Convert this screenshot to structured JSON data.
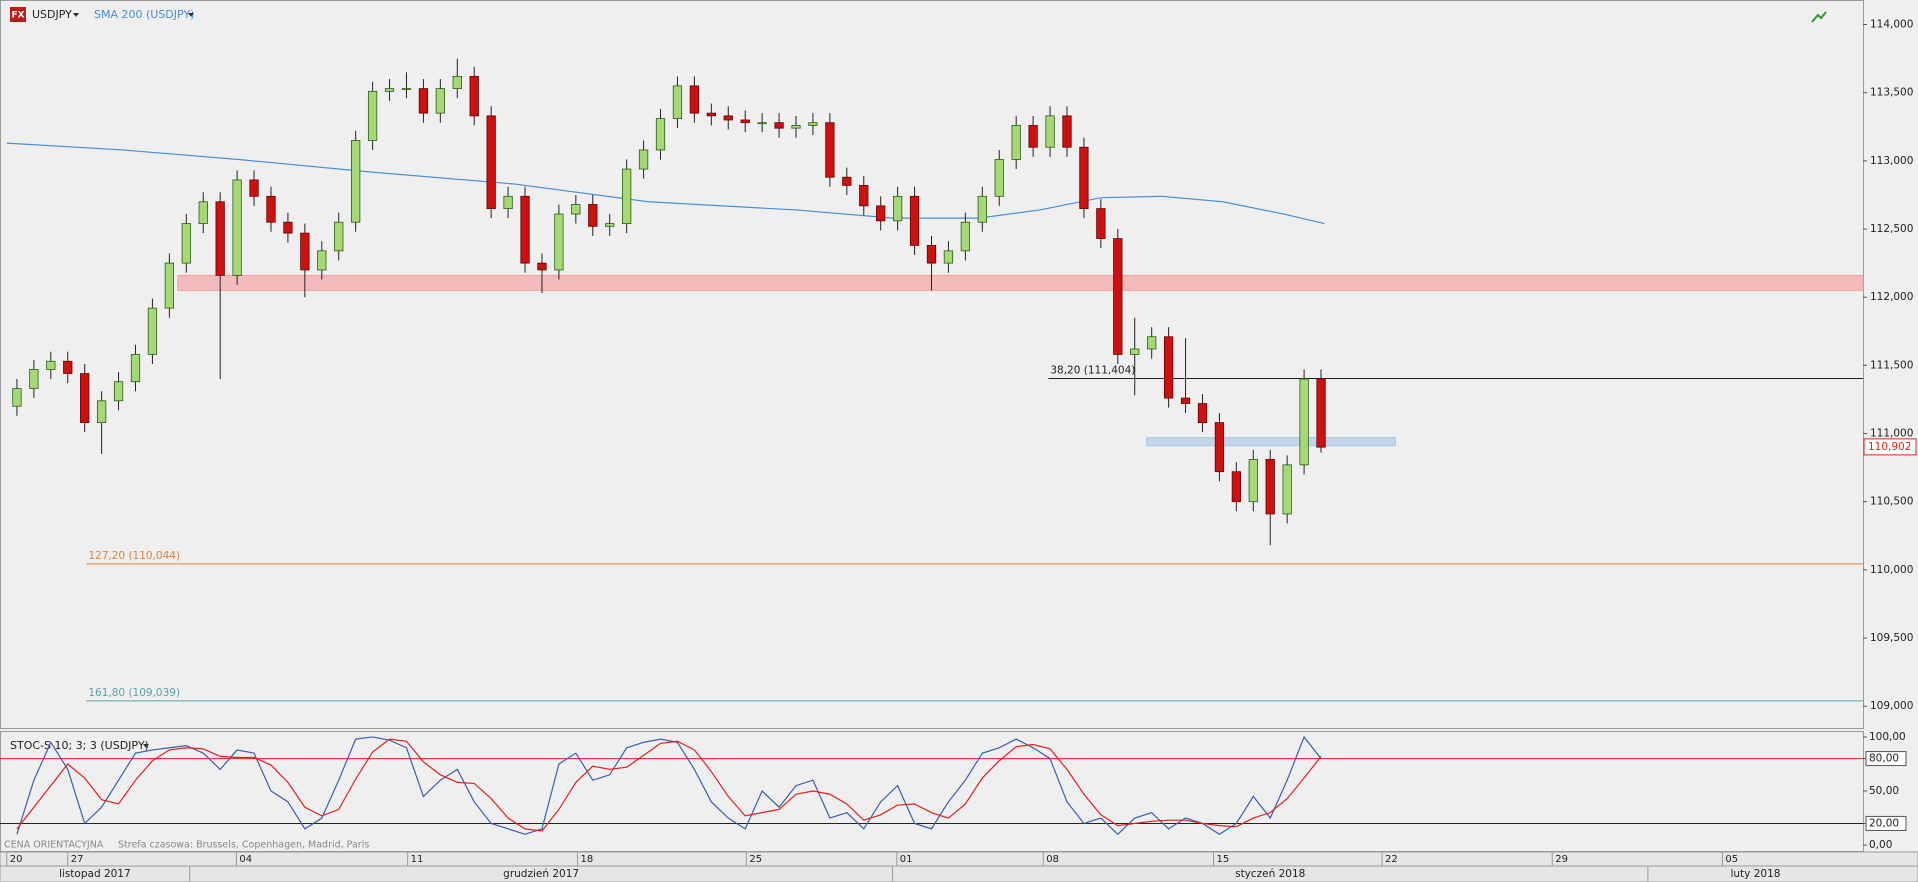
{
  "chart_data": [
    {
      "type": "candlestick",
      "title": "USDJPY",
      "logo": "FX",
      "xlim": [
        -4,
        106
      ],
      "ylim": [
        108.84,
        114.18
      ],
      "yticks": [
        {
          "value": 109,
          "label": "109,000"
        },
        {
          "value": 109.5,
          "label": "109,500"
        },
        {
          "value": 110,
          "label": "110,000"
        },
        {
          "value": 110.5,
          "label": "110,500"
        },
        {
          "value": 111,
          "label": "111,000"
        },
        {
          "value": 111.5,
          "label": "111,500"
        },
        {
          "value": 112,
          "label": "112,000"
        },
        {
          "value": 112.5,
          "label": "112,500"
        },
        {
          "value": 113,
          "label": "113,000"
        },
        {
          "value": 113.5,
          "label": "113,500"
        },
        {
          "value": 114,
          "label": "114,000"
        }
      ],
      "up_color": "#a6d878",
      "down_color": "#cc1111",
      "x": [
        -3,
        -2,
        -1,
        0,
        1,
        2,
        3,
        4,
        5,
        6,
        7,
        8,
        9,
        10,
        11,
        12,
        13,
        14,
        15,
        16,
        17,
        18,
        19,
        20,
        21,
        22,
        23,
        24,
        25,
        26,
        27,
        28,
        29,
        30,
        31,
        32,
        33,
        34,
        35,
        36,
        37,
        38,
        39,
        40,
        41,
        42,
        43,
        44,
        45,
        46,
        47,
        48,
        49,
        50,
        51,
        52,
        53,
        54,
        55,
        56,
        57,
        58,
        59,
        60,
        61,
        62,
        63,
        64,
        65,
        66,
        67,
        68,
        69,
        70,
        71,
        72,
        73,
        74
      ],
      "open": [
        111.2,
        111.33,
        111.47,
        111.53,
        111.44,
        111.08,
        111.24,
        111.38,
        111.58,
        111.92,
        112.25,
        112.54,
        112.7,
        112.16,
        112.86,
        112.74,
        112.55,
        112.47,
        112.2,
        112.34,
        112.55,
        113.15,
        113.51,
        113.53,
        113.53,
        113.35,
        113.53,
        113.62,
        113.33,
        112.65,
        112.74,
        112.25,
        112.2,
        112.61,
        112.68,
        112.52,
        112.54,
        112.94,
        113.08,
        113.31,
        113.55,
        113.35,
        113.33,
        113.3,
        113.28,
        113.28,
        113.24,
        113.26,
        113.28,
        112.88,
        112.82,
        112.67,
        112.56,
        112.74,
        112.38,
        112.25,
        112.34,
        112.55,
        112.74,
        113.01,
        113.26,
        113.1,
        113.33,
        113.1,
        112.65,
        112.43,
        111.58,
        111.62,
        111.71,
        111.26,
        111.22,
        111.08,
        110.72,
        110.5,
        110.81,
        110.41,
        110.77,
        111.4
      ],
      "high": [
        111.4,
        111.54,
        111.6,
        111.6,
        111.51,
        111.31,
        111.45,
        111.65,
        111.99,
        112.32,
        112.61,
        112.77,
        112.77,
        112.93,
        112.93,
        112.81,
        112.62,
        112.54,
        112.41,
        112.62,
        113.22,
        113.58,
        113.6,
        113.65,
        113.6,
        113.6,
        113.75,
        113.69,
        113.4,
        112.81,
        112.81,
        112.32,
        112.68,
        112.75,
        112.75,
        112.61,
        113.01,
        113.15,
        113.38,
        113.62,
        113.62,
        113.42,
        113.4,
        113.37,
        113.35,
        113.35,
        113.33,
        113.35,
        113.35,
        112.95,
        112.89,
        112.74,
        112.81,
        112.81,
        112.45,
        112.41,
        112.62,
        112.81,
        113.08,
        113.33,
        113.33,
        113.4,
        113.4,
        113.17,
        112.72,
        112.5,
        111.85,
        111.78,
        111.78,
        111.7,
        111.29,
        111.15,
        110.79,
        110.88,
        110.88,
        110.84,
        111.47,
        111.47
      ],
      "low": [
        111.13,
        111.26,
        111.4,
        111.37,
        111.01,
        110.85,
        111.17,
        111.31,
        111.51,
        111.85,
        112.18,
        112.47,
        111.4,
        112.09,
        112.67,
        112.48,
        112.4,
        112.0,
        112.13,
        112.27,
        112.48,
        113.08,
        113.44,
        113.46,
        113.28,
        113.28,
        113.46,
        113.26,
        112.58,
        112.58,
        112.18,
        112.03,
        112.13,
        112.54,
        112.45,
        112.45,
        112.47,
        112.87,
        113.01,
        113.24,
        113.28,
        113.26,
        113.23,
        113.21,
        113.21,
        113.17,
        113.17,
        113.19,
        112.81,
        112.75,
        112.6,
        112.49,
        112.49,
        112.31,
        112.05,
        112.18,
        112.27,
        112.48,
        112.67,
        112.94,
        113.03,
        113.03,
        113.03,
        112.58,
        112.36,
        111.51,
        111.28,
        111.55,
        111.19,
        111.15,
        111.01,
        110.65,
        110.43,
        110.43,
        110.18,
        110.34,
        110.7,
        110.86
      ],
      "close": [
        111.33,
        111.47,
        111.53,
        111.44,
        111.08,
        111.24,
        111.38,
        111.58,
        111.92,
        112.25,
        112.54,
        112.7,
        112.16,
        112.86,
        112.74,
        112.55,
        112.47,
        112.2,
        112.34,
        112.55,
        113.15,
        113.51,
        113.53,
        113.53,
        113.35,
        113.53,
        113.62,
        113.33,
        112.65,
        112.74,
        112.25,
        112.2,
        112.61,
        112.68,
        112.52,
        112.54,
        112.94,
        113.08,
        113.31,
        113.55,
        113.35,
        113.33,
        113.3,
        113.28,
        113.28,
        113.24,
        113.26,
        113.28,
        112.88,
        112.82,
        112.67,
        112.56,
        112.74,
        112.38,
        112.25,
        112.34,
        112.55,
        112.74,
        113.01,
        113.26,
        113.1,
        113.33,
        113.1,
        112.65,
        112.43,
        111.58,
        111.62,
        111.71,
        111.26,
        111.22,
        111.08,
        110.72,
        110.5,
        110.81,
        110.41,
        110.77,
        111.4,
        110.9
      ],
      "series": [
        {
          "name": "SMA 200 (USDJPY)",
          "color": "#4a8fd6",
          "x": [
            -3.6,
            3.25,
            10.1,
            17.7,
            26.4,
            34.3,
            43,
            48.7,
            53.8,
            57.4,
            61,
            64.6,
            68.2,
            71.8,
            74.2
          ],
          "values": [
            113.13,
            113.08,
            113.01,
            112.92,
            112.83,
            112.7,
            112.64,
            112.58,
            112.58,
            112.64,
            112.73,
            112.74,
            112.7,
            112.61,
            112.54
          ]
        }
      ],
      "zones": [
        {
          "from": 112.05,
          "to": 112.16,
          "x_start": 6.5,
          "color": "#f2a0a0"
        },
        {
          "from": 110.91,
          "to": 110.97,
          "x_start": 63.7,
          "x_end": 78.4,
          "color": "#a8c8e8"
        }
      ],
      "levels": [
        {
          "label": "38,20 (111,404)",
          "value": 111.404,
          "x_start": 57.9,
          "color": "#222222"
        },
        {
          "label": "127,20 (110,044)",
          "value": 110.044,
          "x_start": 1.1,
          "color": "#e0803a"
        },
        {
          "label": "161,80 (109,039)",
          "value": 109.039,
          "x_start": 1.1,
          "color": "#5aa0a8"
        }
      ],
      "last_price": {
        "value": 110.902,
        "label": "110,902",
        "color": "#dd2222"
      }
    },
    {
      "type": "line",
      "title": "STOC-S 10; 3; 3 (USDJPY)",
      "xlim": [
        -4,
        106
      ],
      "ylim": [
        -6.4,
        105.5
      ],
      "yticks": [
        {
          "value": 100,
          "label": "100,00"
        },
        {
          "value": 80,
          "label": "80,00"
        },
        {
          "value": 50,
          "label": "50,00"
        },
        {
          "value": 20,
          "label": "20,00"
        },
        {
          "value": 0,
          "label": "0,00"
        }
      ],
      "levels": [
        {
          "value": 80,
          "color": "#e02020"
        },
        {
          "value": 20,
          "color": "#222222"
        }
      ],
      "x": [
        -3,
        -2,
        -1,
        0,
        1,
        2,
        3,
        4,
        5,
        6,
        7,
        8,
        9,
        10,
        11,
        12,
        13,
        14,
        15,
        16,
        17,
        18,
        19,
        20,
        21,
        22,
        23,
        24,
        25,
        26,
        27,
        28,
        29,
        30,
        31,
        32,
        33,
        34,
        35,
        36,
        37,
        38,
        39,
        40,
        41,
        42,
        43,
        44,
        45,
        46,
        47,
        48,
        49,
        50,
        51,
        52,
        53,
        54,
        55,
        56,
        57,
        58,
        59,
        60,
        61,
        62,
        63,
        64,
        65,
        66,
        67,
        68,
        69,
        70,
        71,
        72,
        73,
        74
      ],
      "series": [
        {
          "color": "#3b5ea8",
          "values": [
            10,
            60,
            95,
            70,
            20,
            35,
            60,
            85,
            88,
            90,
            92,
            85,
            70,
            88,
            85,
            50,
            40,
            15,
            25,
            60,
            98,
            100,
            97,
            90,
            45,
            60,
            70,
            40,
            20,
            15,
            10,
            15,
            75,
            85,
            60,
            65,
            90,
            95,
            98,
            95,
            70,
            40,
            25,
            15,
            50,
            35,
            55,
            60,
            25,
            30,
            15,
            40,
            55,
            20,
            15,
            40,
            60,
            85,
            90,
            98,
            90,
            80,
            40,
            20,
            25,
            10,
            25,
            30,
            15,
            25,
            20,
            10,
            20,
            45,
            25,
            60,
            100,
            80
          ]
        },
        {
          "color": "#e02020",
          "values": [
            15,
            35,
            55,
            75,
            62,
            42,
            38,
            60,
            78,
            88,
            90,
            89,
            82,
            81,
            81,
            74,
            58,
            35,
            27,
            33,
            61,
            86,
            98,
            96,
            77,
            65,
            58,
            57,
            43,
            25,
            15,
            13,
            33,
            58,
            73,
            70,
            72,
            83,
            94,
            96,
            88,
            68,
            45,
            27,
            30,
            33,
            47,
            50,
            47,
            38,
            23,
            28,
            37,
            38,
            30,
            25,
            38,
            62,
            78,
            91,
            93,
            89,
            70,
            47,
            28,
            18,
            20,
            22,
            23,
            23,
            20,
            18,
            17,
            25,
            30,
            43,
            62,
            82
          ]
        }
      ],
      "xticks": [
        {
          "value": -3.6,
          "label": "20"
        },
        {
          "value": 0,
          "label": "27"
        },
        {
          "value": 9.96,
          "label": "04"
        },
        {
          "value": 20.07,
          "label": "11"
        },
        {
          "value": 30.1,
          "label": "18"
        },
        {
          "value": 40.07,
          "label": "25"
        },
        {
          "value": 48.95,
          "label": "01"
        },
        {
          "value": 57.6,
          "label": "08"
        },
        {
          "value": 67.65,
          "label": "15"
        },
        {
          "value": 77.6,
          "label": "22"
        },
        {
          "value": 87.65,
          "label": "29"
        },
        {
          "value": 97.7,
          "label": "05"
        }
      ],
      "month_starts": [
        7.2,
        48.7,
        93.3
      ],
      "month_labels": [
        "listopad 2017",
        "grudzień 2017",
        "styczeń 2018",
        "luty 2018"
      ],
      "footer": "CENA ORIENTACYJNA",
      "timezone": "Strefa czasowa: Brussels, Copenhagen, Madrid, Paris"
    }
  ]
}
